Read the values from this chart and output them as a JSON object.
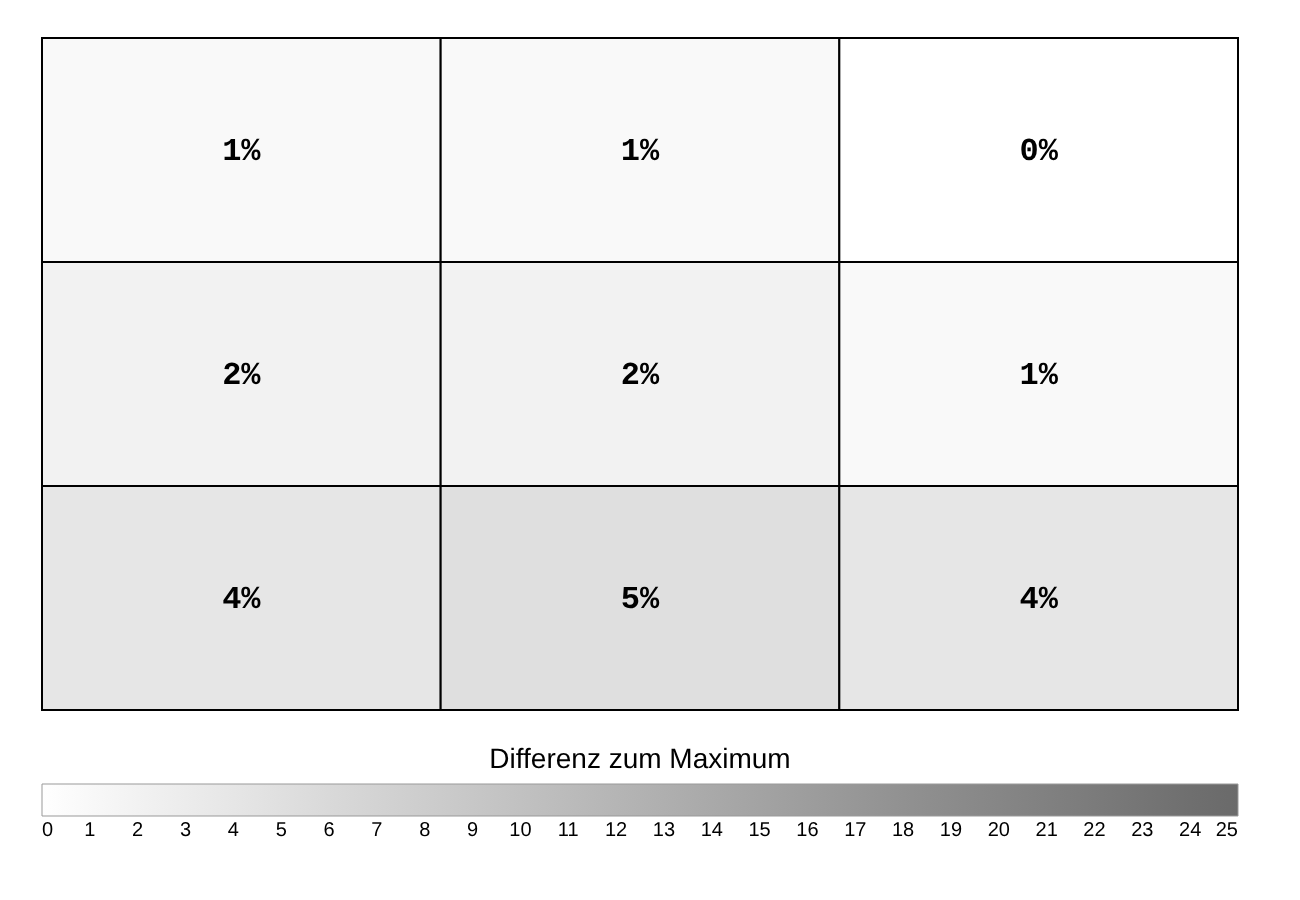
{
  "chart_data": {
    "type": "heatmap",
    "categories": [
      null,
      null,
      null
    ],
    "y_categories": [
      null,
      null,
      null
    ],
    "cells": [
      [
        1,
        1,
        0
      ],
      [
        2,
        2,
        1
      ],
      [
        4,
        5,
        4
      ]
    ],
    "cell_labels": [
      [
        "1%",
        "1%",
        "0%"
      ],
      [
        "2%",
        "2%",
        "1%"
      ],
      [
        "4%",
        "5%",
        "4%"
      ]
    ],
    "clabel": "Differenz zum Maximum",
    "clim": [
      0,
      25
    ],
    "cticks": [
      0,
      1,
      2,
      3,
      4,
      5,
      6,
      7,
      8,
      9,
      10,
      11,
      12,
      13,
      14,
      15,
      16,
      17,
      18,
      19,
      20,
      21,
      22,
      23,
      24,
      25
    ]
  }
}
